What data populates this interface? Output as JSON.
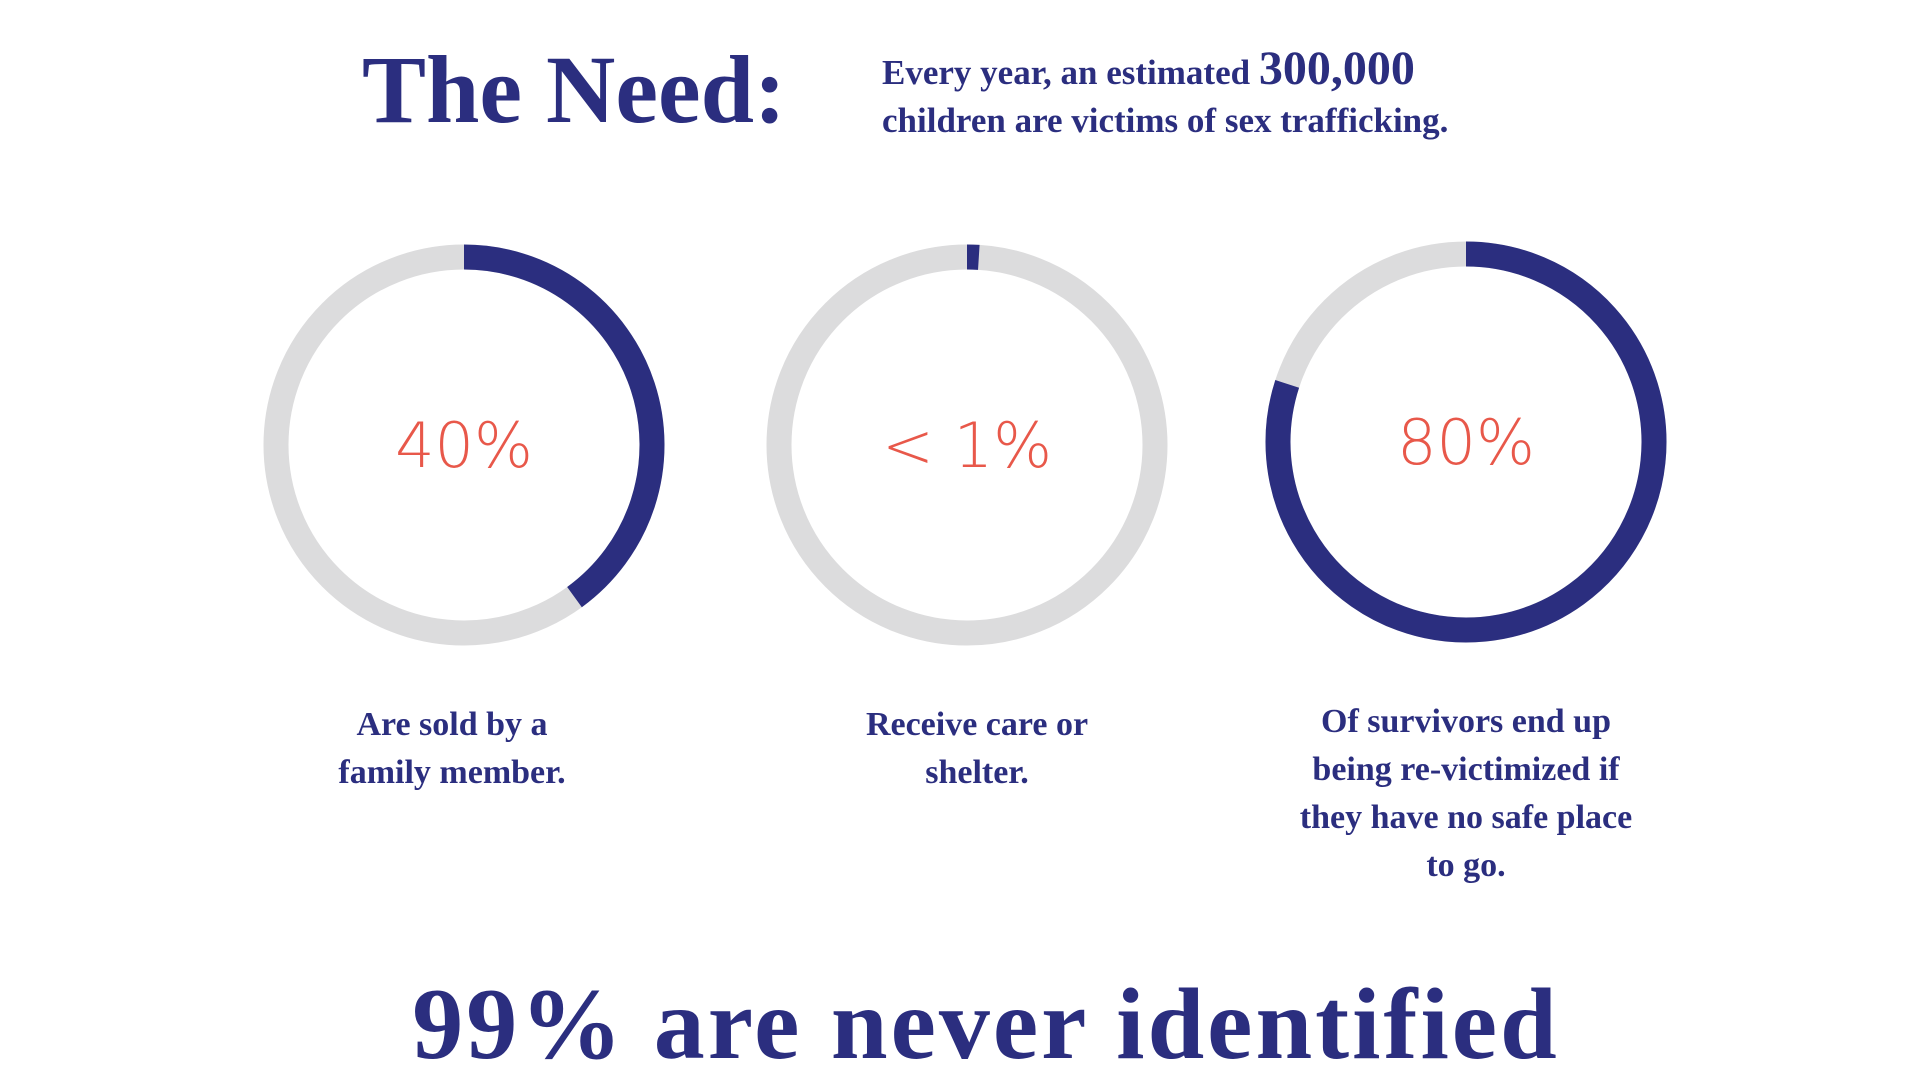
{
  "header": {
    "title": "The Need:",
    "subtitle": {
      "line1": "Every year, an estimated",
      "highlight": "300,000",
      "line2": "children are victims of sex trafficking."
    }
  },
  "chart_data": [
    {
      "type": "donut",
      "values": [
        40
      ],
      "value_labels": [
        "40%"
      ],
      "color": "#2b2e7f",
      "track_color": "#dcdcdd",
      "caption": [
        "Are sold by a",
        "family member."
      ]
    },
    {
      "type": "donut",
      "values": [
        1
      ],
      "value_labels": [
        "< 1%"
      ],
      "color": "#2b2e7f",
      "track_color": "#dcdcdd",
      "caption": [
        "Receive care or",
        "shelter."
      ]
    },
    {
      "type": "donut",
      "values": [
        80
      ],
      "value_labels": [
        "80%"
      ],
      "color": "#2b2e7f",
      "track_color": "#dcdcdd",
      "caption": [
        "Of survivors end up",
        "being re-victimized if",
        "they have no safe place",
        "to go."
      ]
    }
  ],
  "footer": "99% are never identified"
}
